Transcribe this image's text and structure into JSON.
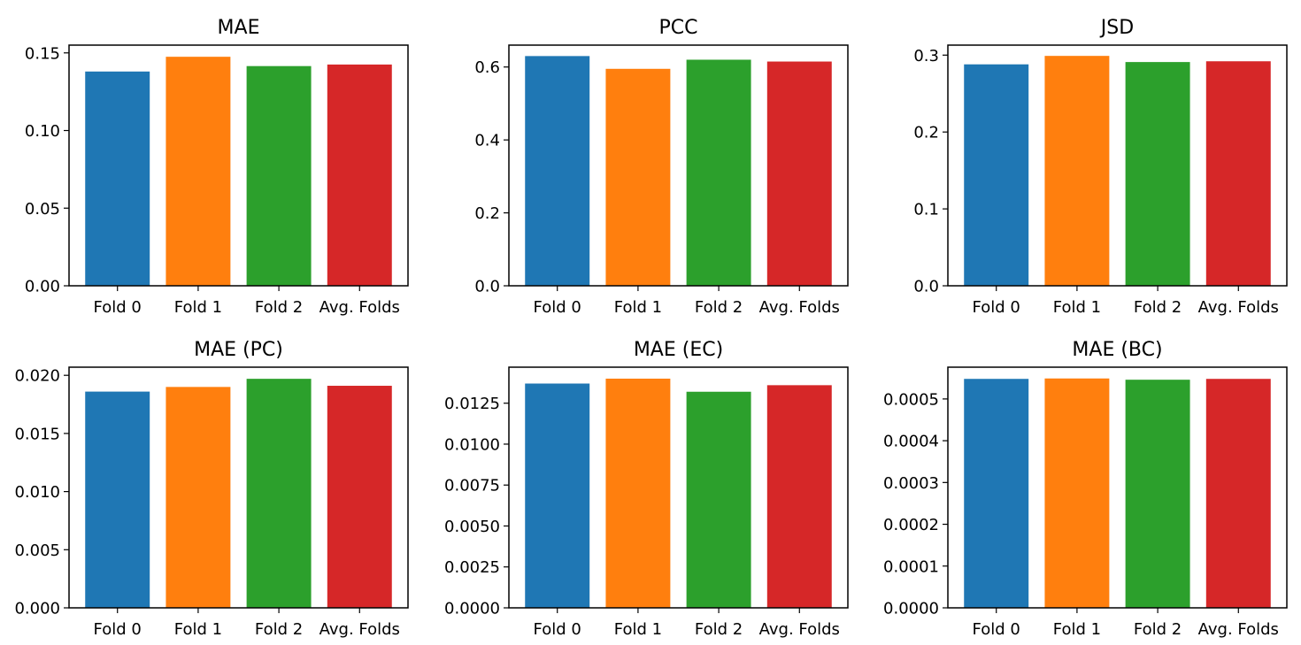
{
  "colors": [
    "#1f77b4",
    "#ff7f0e",
    "#2ca02c",
    "#d62728"
  ],
  "chart_data": [
    {
      "type": "bar",
      "title": "MAE",
      "categories": [
        "Fold 0",
        "Fold 1",
        "Fold 2",
        "Avg. Folds"
      ],
      "values": [
        0.138,
        0.1475,
        0.1415,
        0.1425
      ],
      "ylim": [
        0,
        0.155
      ],
      "yticks": [
        0,
        0.05,
        0.1,
        0.15
      ],
      "ytick_labels": [
        "0.00",
        "0.05",
        "0.10",
        "0.15"
      ],
      "xlabel": "",
      "ylabel": "",
      "grid": false
    },
    {
      "type": "bar",
      "title": "PCC",
      "categories": [
        "Fold 0",
        "Fold 1",
        "Fold 2",
        "Avg. Folds"
      ],
      "values": [
        0.63,
        0.595,
        0.62,
        0.615
      ],
      "ylim": [
        0,
        0.66
      ],
      "yticks": [
        0,
        0.2,
        0.4,
        0.6
      ],
      "ytick_labels": [
        "0.0",
        "0.2",
        "0.4",
        "0.6"
      ],
      "xlabel": "",
      "ylabel": "",
      "grid": false
    },
    {
      "type": "bar",
      "title": "JSD",
      "categories": [
        "Fold 0",
        "Fold 1",
        "Fold 2",
        "Avg. Folds"
      ],
      "values": [
        0.288,
        0.299,
        0.291,
        0.292
      ],
      "ylim": [
        0,
        0.313
      ],
      "yticks": [
        0,
        0.1,
        0.2,
        0.3
      ],
      "ytick_labels": [
        "0.0",
        "0.1",
        "0.2",
        "0.3"
      ],
      "xlabel": "",
      "ylabel": "",
      "grid": false
    },
    {
      "type": "bar",
      "title": "MAE (PC)",
      "categories": [
        "Fold 0",
        "Fold 1",
        "Fold 2",
        "Avg. Folds"
      ],
      "values": [
        0.0186,
        0.019,
        0.0197,
        0.0191
      ],
      "ylim": [
        0,
        0.0207
      ],
      "yticks": [
        0,
        0.005,
        0.01,
        0.015,
        0.02
      ],
      "ytick_labels": [
        "0.000",
        "0.005",
        "0.010",
        "0.015",
        "0.020"
      ],
      "xlabel": "",
      "ylabel": "",
      "grid": false
    },
    {
      "type": "bar",
      "title": "MAE (EC)",
      "categories": [
        "Fold 0",
        "Fold 1",
        "Fold 2",
        "Avg. Folds"
      ],
      "values": [
        0.0137,
        0.014,
        0.0132,
        0.0136
      ],
      "ylim": [
        0,
        0.0147
      ],
      "yticks": [
        0,
        0.0025,
        0.005,
        0.0075,
        0.01,
        0.0125
      ],
      "ytick_labels": [
        "0.0000",
        "0.0025",
        "0.0050",
        "0.0075",
        "0.0100",
        "0.0125"
      ],
      "xlabel": "",
      "ylabel": "",
      "grid": false
    },
    {
      "type": "bar",
      "title": "MAE (BC)",
      "categories": [
        "Fold 0",
        "Fold 1",
        "Fold 2",
        "Avg. Folds"
      ],
      "values": [
        0.000548,
        0.000549,
        0.000546,
        0.000548
      ],
      "ylim": [
        0,
        0.000576
      ],
      "yticks": [
        0,
        0.0001,
        0.0002,
        0.0003,
        0.0004,
        0.0005
      ],
      "ytick_labels": [
        "0.0000",
        "0.0001",
        "0.0002",
        "0.0003",
        "0.0004",
        "0.0005"
      ],
      "xlabel": "",
      "ylabel": "",
      "grid": false
    }
  ]
}
